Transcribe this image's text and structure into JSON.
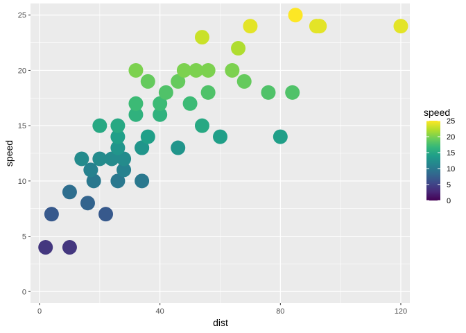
{
  "chart_data": {
    "type": "scatter",
    "xlabel": "dist",
    "ylabel": "speed",
    "xlim": [
      -3,
      123
    ],
    "ylim": [
      -1.05,
      26.05
    ],
    "x_ticks": [
      0,
      40,
      80,
      120
    ],
    "x_tick_labels": [
      "0",
      "40",
      "80",
      "120"
    ],
    "y_ticks": [
      0,
      5,
      10,
      15,
      20,
      25
    ],
    "y_tick_labels": [
      "0",
      "5",
      "10",
      "15",
      "20",
      "25"
    ],
    "grid": true,
    "color_by": "speed",
    "legend": {
      "title": "speed",
      "placement": "right",
      "range": [
        0,
        25
      ],
      "ticks": [
        0,
        5,
        10,
        15,
        20,
        25
      ],
      "tick_labels": [
        "0",
        "5",
        "10",
        "15",
        "20",
        "25"
      ]
    },
    "colors": {
      "panel_background": "#ebebeb",
      "grid_major": "#ffffff",
      "palette": [
        "#440154",
        "#482878",
        "#3e4989",
        "#31688e",
        "#26828e",
        "#1f9e89",
        "#35b779",
        "#6ece58",
        "#b5de2b",
        "#fde725"
      ]
    },
    "points": [
      {
        "x": 2,
        "y": 4
      },
      {
        "x": 10,
        "y": 4
      },
      {
        "x": 4,
        "y": 7
      },
      {
        "x": 22,
        "y": 7
      },
      {
        "x": 16,
        "y": 8
      },
      {
        "x": 10,
        "y": 9
      },
      {
        "x": 18,
        "y": 10
      },
      {
        "x": 26,
        "y": 10
      },
      {
        "x": 34,
        "y": 10
      },
      {
        "x": 17,
        "y": 11
      },
      {
        "x": 28,
        "y": 11
      },
      {
        "x": 14,
        "y": 12
      },
      {
        "x": 20,
        "y": 12
      },
      {
        "x": 24,
        "y": 12
      },
      {
        "x": 28,
        "y": 12
      },
      {
        "x": 26,
        "y": 13
      },
      {
        "x": 34,
        "y": 13
      },
      {
        "x": 34,
        "y": 13
      },
      {
        "x": 46,
        "y": 13
      },
      {
        "x": 26,
        "y": 14
      },
      {
        "x": 36,
        "y": 14
      },
      {
        "x": 60,
        "y": 14
      },
      {
        "x": 80,
        "y": 14
      },
      {
        "x": 20,
        "y": 15
      },
      {
        "x": 26,
        "y": 15
      },
      {
        "x": 54,
        "y": 15
      },
      {
        "x": 32,
        "y": 16
      },
      {
        "x": 40,
        "y": 16
      },
      {
        "x": 32,
        "y": 17
      },
      {
        "x": 40,
        "y": 17
      },
      {
        "x": 50,
        "y": 17
      },
      {
        "x": 42,
        "y": 18
      },
      {
        "x": 56,
        "y": 18
      },
      {
        "x": 76,
        "y": 18
      },
      {
        "x": 84,
        "y": 18
      },
      {
        "x": 36,
        "y": 19
      },
      {
        "x": 46,
        "y": 19
      },
      {
        "x": 68,
        "y": 19
      },
      {
        "x": 32,
        "y": 20
      },
      {
        "x": 48,
        "y": 20
      },
      {
        "x": 52,
        "y": 20
      },
      {
        "x": 56,
        "y": 20
      },
      {
        "x": 64,
        "y": 20
      },
      {
        "x": 66,
        "y": 22
      },
      {
        "x": 54,
        "y": 23
      },
      {
        "x": 70,
        "y": 24
      },
      {
        "x": 92,
        "y": 24
      },
      {
        "x": 93,
        "y": 24
      },
      {
        "x": 120,
        "y": 24
      },
      {
        "x": 85,
        "y": 25
      }
    ]
  }
}
